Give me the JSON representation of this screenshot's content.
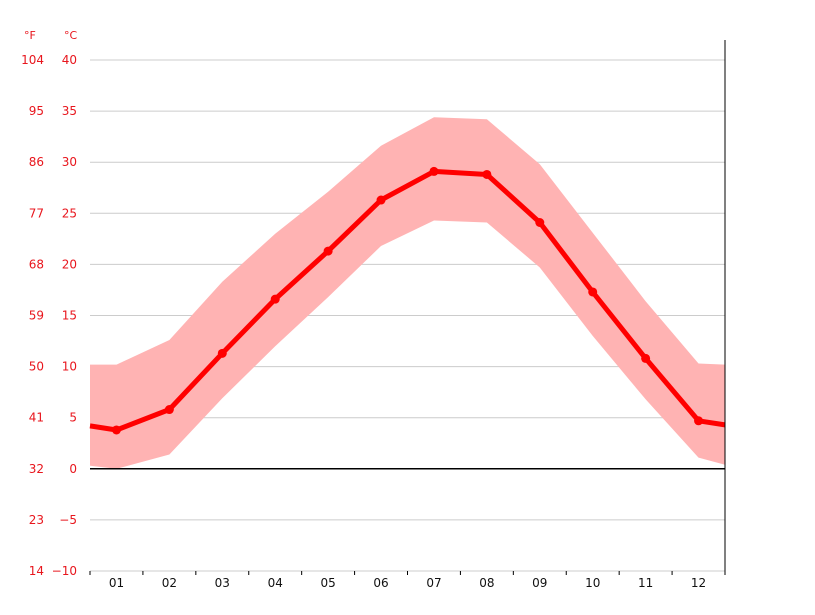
{
  "chart_data": {
    "type": "line",
    "categories": [
      "01",
      "02",
      "03",
      "04",
      "05",
      "06",
      "07",
      "08",
      "09",
      "10",
      "11",
      "12"
    ],
    "series": [
      {
        "values": [
          3.8,
          5.8,
          11.3,
          16.6,
          21.3,
          26.3,
          29.1,
          28.8,
          24.1,
          17.3,
          10.8,
          4.7
        ],
        "color": "#ff0000"
      }
    ],
    "band": {
      "low": [
        0.0,
        1.4,
        6.9,
        12.0,
        16.8,
        21.8,
        24.3,
        24.1,
        19.7,
        13.0,
        6.8,
        1.1
      ],
      "high": [
        10.2,
        12.6,
        18.3,
        23.0,
        27.1,
        31.6,
        34.4,
        34.2,
        29.8,
        23.1,
        16.4,
        10.3
      ],
      "color": "#ffb3b3"
    },
    "edge_values": {
      "line_left": 4.2,
      "line_right": 4.3,
      "band_low_left": 0.3,
      "band_low_right": 0.4,
      "band_high_left": 10.2,
      "band_high_right": 10.2
    },
    "ylim": [
      -10,
      40
    ],
    "y_ticks_c": [
      "40",
      "35",
      "30",
      "25",
      "20",
      "15",
      "10",
      "5",
      "0",
      "−5",
      "−10"
    ],
    "y_ticks_f": [
      "104",
      "95",
      "86",
      "77",
      "68",
      "59",
      "50",
      "41",
      "32",
      "23",
      "14"
    ],
    "unit_f": "°F",
    "unit_c": "°C",
    "grid": true,
    "zero_line": true,
    "colors": {
      "line": "#ff0000",
      "band": "#ffb3b3",
      "axis_text": "#e8161d",
      "grid": "#cccccc",
      "zero_line": "#000000"
    }
  }
}
